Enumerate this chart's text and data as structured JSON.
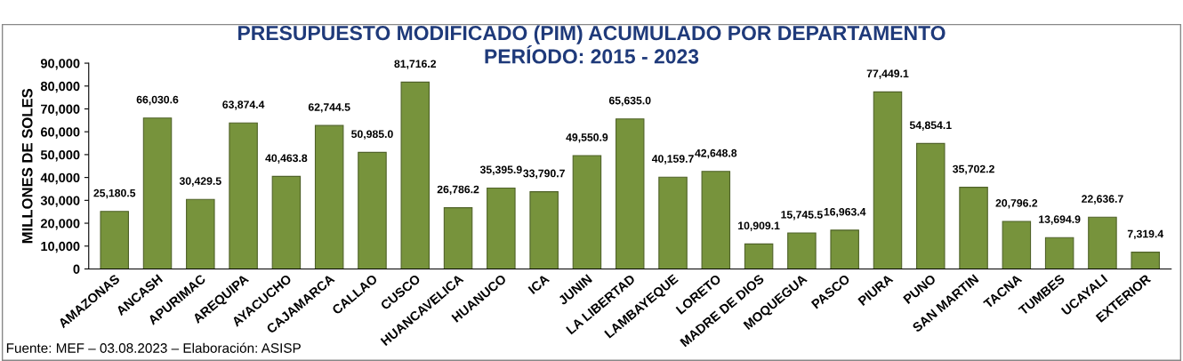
{
  "chart_data": {
    "type": "bar",
    "title": "PRESUPUESTO MODIFICADO (PIM) ACUMULADO POR DEPARTAMENTO\nPERÍODO: 2015 - 2023",
    "ylabel": "MILLONES DE SOLES",
    "categories": [
      "AMAZONAS",
      "ANCASH",
      "APURIMAC",
      "AREQUIPA",
      "AYACUCHO",
      "CAJAMARCA",
      "CALLAO",
      "CUSCO",
      "HUANCAVELICA",
      "HUANUCO",
      "ICA",
      "JUNIN",
      "LA LIBERTAD",
      "LAMBAYEQUE",
      "LORETO",
      "MADRE DE DIOS",
      "MOQUEGUA",
      "PASCO",
      "PIURA",
      "PUNO",
      "SAN MARTIN",
      "TACNA",
      "TUMBES",
      "UCAYALI",
      "EXTERIOR"
    ],
    "values": [
      25180.5,
      66030.6,
      30429.5,
      63874.4,
      40463.8,
      62744.5,
      50985.0,
      81716.2,
      26786.2,
      35395.9,
      33790.7,
      49550.9,
      65635.0,
      40159.7,
      42648.8,
      10909.1,
      15745.5,
      16963.4,
      77449.1,
      54854.1,
      35702.2,
      20796.2,
      13694.9,
      22636.7,
      7319.4
    ],
    "value_labels": [
      "25,180.5",
      "66,030.6",
      "30,429.5",
      "63,874.4",
      "40,463.8",
      "62,744.5",
      "50,985.0",
      "81,716.2",
      "26,786.2",
      "35,395.9",
      "33,790.7",
      "49,550.9",
      "65,635.0",
      "40,159.7",
      "42,648.8",
      "10,909.1",
      "15,745.5",
      "16,963.4",
      "77,449.1",
      "54,854.1",
      "35,702.2",
      "20,796.2",
      "13,694.9",
      "22,636.7",
      "7,319.4"
    ],
    "color": "#77933c",
    "ylim": [
      0,
      90000
    ],
    "yticks": [
      0,
      {
        "value": 10000,
        "label": "10,000"
      },
      {
        "value": 20000,
        "label": "20,000"
      },
      {
        "value": 30000,
        "label": "30,000"
      },
      {
        "value": 40000,
        "label": "40,000"
      },
      {
        "value": 50000,
        "label": "50,000"
      },
      {
        "value": 60000,
        "label": "60,000"
      },
      {
        "value": 70000,
        "label": "70,000"
      },
      {
        "value": 80000,
        "label": "80,000"
      },
      {
        "value": 90000,
        "label": "90,000"
      }
    ],
    "annotations": [
      "Fuente: MEF – 03.08.2023 – Elaboración: ASISP"
    ]
  }
}
